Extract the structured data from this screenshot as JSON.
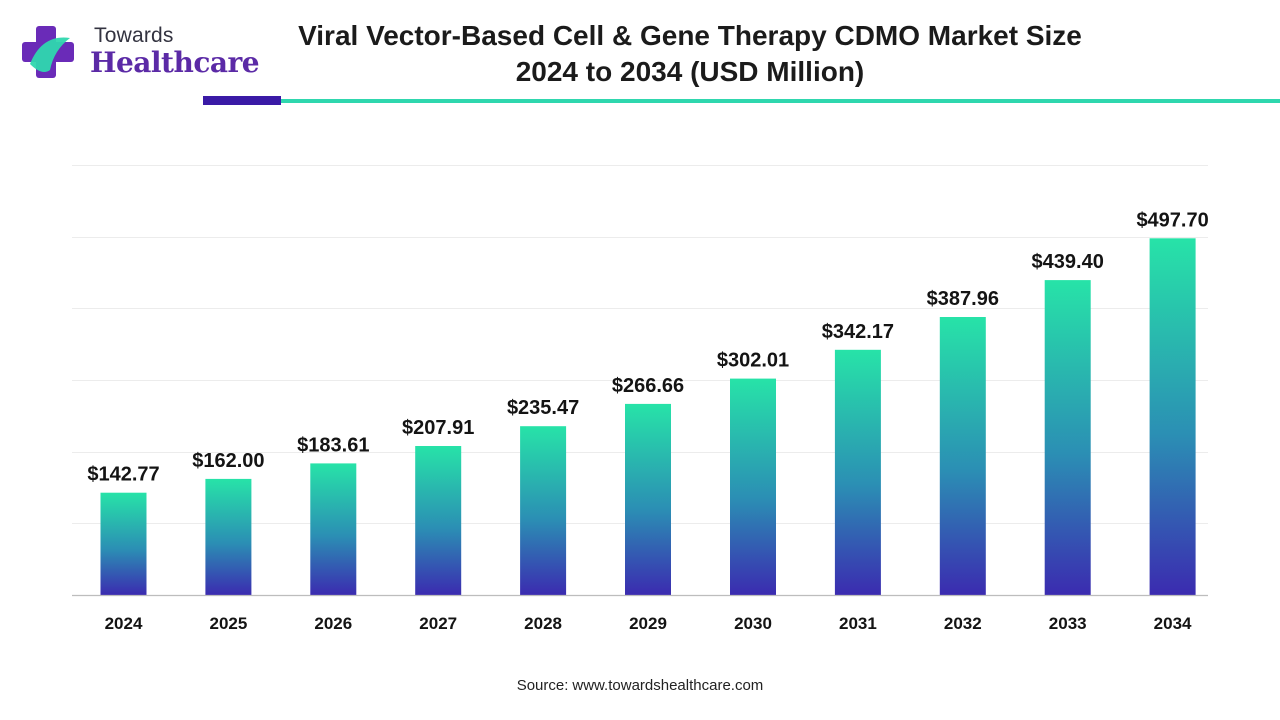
{
  "brand": {
    "line1": "Towards",
    "line2": "Healthcare",
    "colors": {
      "purple": "#5b2aa6",
      "teal": "#2fd7ae"
    }
  },
  "header": {
    "title_line1": "Viral Vector-Based Cell & Gene Therapy CDMO Market Size",
    "title_line2": "2024 to 2034 (USD Million)"
  },
  "footer": {
    "source_label": "Source:",
    "source_url": "www.towardshealthcare.com"
  },
  "chart_data": {
    "type": "bar",
    "title": "Viral Vector-Based Cell & Gene Therapy CDMO Market Size 2024 to 2034 (USD Million)",
    "xlabel": "",
    "ylabel": "",
    "categories": [
      "2024",
      "2025",
      "2026",
      "2027",
      "2028",
      "2029",
      "2030",
      "2031",
      "2032",
      "2033",
      "2034"
    ],
    "values": [
      142.77,
      162.0,
      183.61,
      207.91,
      235.47,
      266.66,
      302.01,
      342.17,
      387.96,
      439.4,
      497.7
    ],
    "data_labels": [
      "$142.77",
      "$162.00",
      "$183.61",
      "$207.91",
      "$235.47",
      "$266.66",
      "$302.01",
      "$342.17",
      "$387.96",
      "$439.40",
      "$497.70"
    ],
    "ylim": [
      0,
      600
    ],
    "gridlines": [
      0,
      100,
      200,
      300,
      400,
      500,
      600
    ],
    "grid": true,
    "legend": "none",
    "bar_gradient": {
      "top": "#27e3a8",
      "middle": "#2b8fb4",
      "bottom": "#3b2bb0"
    }
  }
}
